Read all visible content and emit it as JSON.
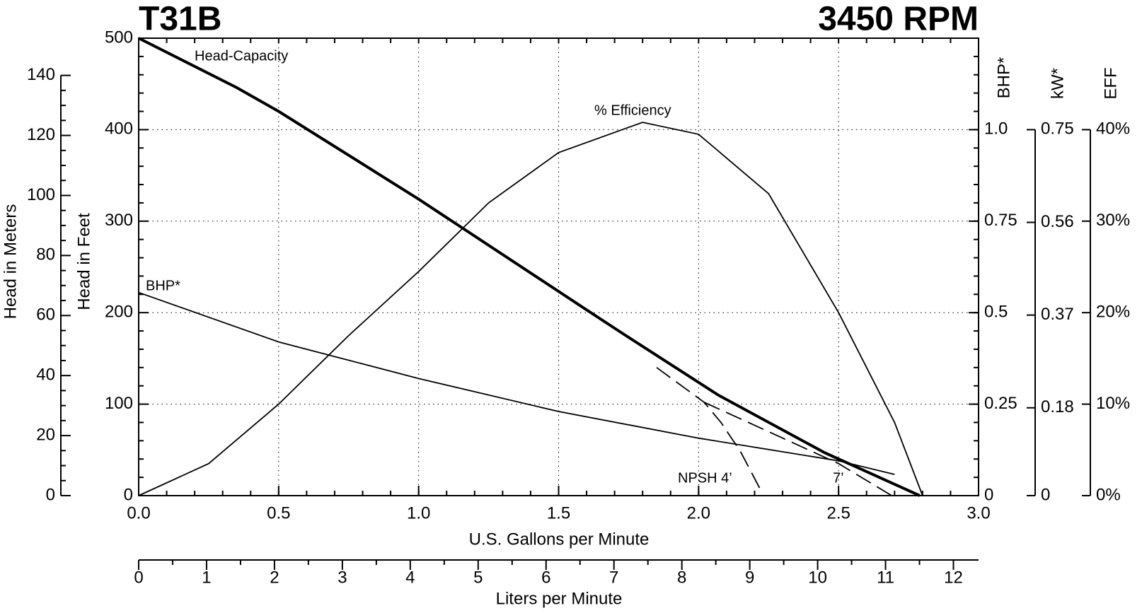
{
  "chart_data": {
    "type": "line",
    "title": "T31B",
    "subtitle": "3450 RPM",
    "x_label": "U.S. Gallons per Minute",
    "xlim": [
      0,
      3
    ],
    "xticks": [
      {
        "value": 0,
        "label": "0.0"
      },
      0.5,
      {
        "value": 1,
        "label": "1.0"
      },
      1.5,
      {
        "value": 2,
        "label": "2.0"
      },
      2.5,
      {
        "value": 3,
        "label": "3.0"
      }
    ],
    "x2_label": "Liters per Minute",
    "x2lim": [
      0,
      12.37
    ],
    "x2ticks": [
      0,
      1,
      2,
      3,
      4,
      5,
      6,
      7,
      8,
      9,
      10,
      11,
      12
    ],
    "grid": true,
    "y_axes": {
      "meters": {
        "label": "Head in Meters",
        "lim": [
          0,
          152.4
        ],
        "ticks": [
          0,
          20,
          40,
          60,
          80,
          100,
          120,
          140
        ]
      },
      "feet": {
        "label": "Head in Feet",
        "lim": [
          0,
          500
        ],
        "ticks": [
          0,
          100,
          200,
          300,
          400,
          500
        ]
      },
      "bhp": {
        "label": "BHP*",
        "lim": [
          0,
          1.25
        ],
        "ticks": [
          0,
          0.25,
          0.5,
          0.75,
          {
            "value": 1,
            "label": "1.0"
          }
        ]
      },
      "kw": {
        "label": "kW*",
        "lim": [
          0,
          0.9375
        ],
        "ticks": [
          0,
          0.18,
          0.37,
          0.56,
          0.75
        ]
      },
      "eff": {
        "label": "EFF",
        "lim": [
          0,
          50
        ],
        "ticks": [
          {
            "value": 0,
            "label": "0%"
          },
          {
            "value": 10,
            "label": "10%"
          },
          {
            "value": 20,
            "label": "20%"
          },
          {
            "value": 30,
            "label": "30%"
          },
          {
            "value": 40,
            "label": "40%"
          }
        ]
      }
    },
    "series": [
      {
        "name": "Head-Capacity",
        "axis": "feet",
        "color": "#000000",
        "x": [
          0,
          0.35,
          0.5,
          1.0,
          1.6,
          1.73,
          2.07,
          2.45,
          2.79
        ],
        "values": [
          500,
          446,
          420,
          324,
          203,
          177,
          110,
          47,
          0
        ]
      },
      {
        "name": "% Efficiency",
        "axis": "eff",
        "color": "#000000",
        "x": [
          0,
          0.25,
          0.5,
          0.75,
          1.0,
          1.25,
          1.5,
          1.8,
          2.0,
          2.25,
          2.5,
          2.7,
          2.8
        ],
        "values": [
          0,
          3.5,
          10,
          17.5,
          24.5,
          32,
          37.5,
          40.8,
          39.5,
          33,
          20,
          8,
          0
        ]
      },
      {
        "name": "BHP*",
        "axis": "bhp",
        "color": "#000000",
        "x": [
          0,
          0.5,
          1.0,
          1.5,
          2.0,
          2.5,
          2.7
        ],
        "values": [
          0.555,
          0.42,
          0.32,
          0.23,
          0.157,
          0.095,
          0.058
        ]
      },
      {
        "name": "NPSH  4’",
        "axis": "feet",
        "color": "#000000",
        "dashed": true,
        "x": [
          1.85,
          2.02,
          2.08,
          2.15,
          2.22
        ],
        "values": [
          140,
          102,
          80,
          48,
          7
        ]
      },
      {
        "name": "7’",
        "axis": "feet",
        "color": "#000000",
        "dashed": true,
        "x": [
          2.02,
          2.5,
          2.69
        ],
        "values": [
          102,
          35,
          0
        ]
      }
    ]
  }
}
